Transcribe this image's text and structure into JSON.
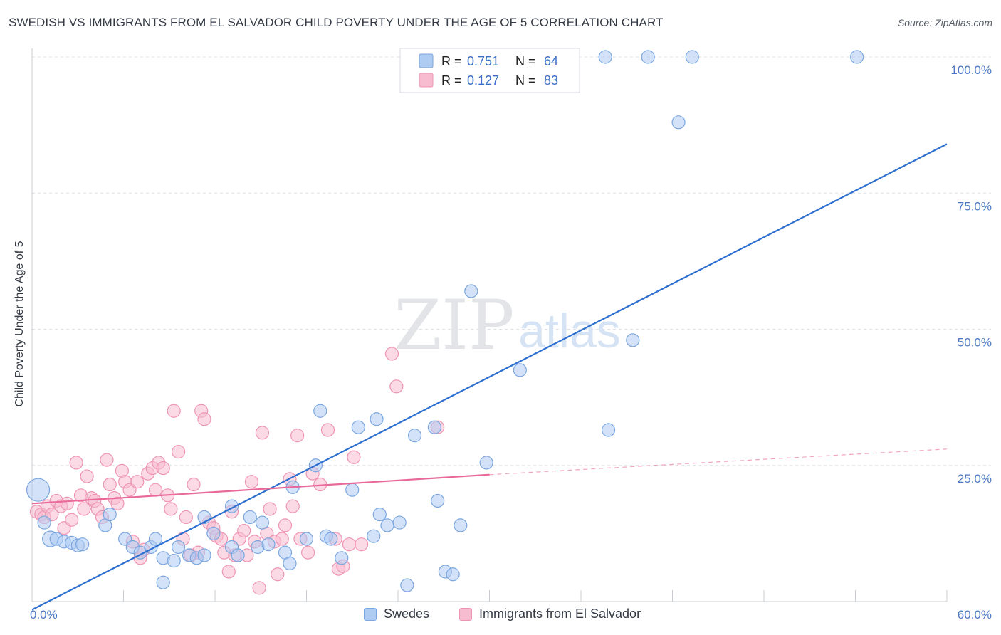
{
  "header": {
    "title": "SWEDISH VS IMMIGRANTS FROM EL SALVADOR CHILD POVERTY UNDER THE AGE OF 5 CORRELATION CHART",
    "source": "Source: ZipAtlas.com"
  },
  "watermark": {
    "zip": "ZIP",
    "atlas": "atlas"
  },
  "legend_box": {
    "rows": [
      {
        "r_label": "R =",
        "r_value": "0.751",
        "n_label": "N =",
        "n_value": "64"
      },
      {
        "r_label": "R =",
        "r_value": "0.127",
        "n_label": "N =",
        "n_value": "83"
      }
    ]
  },
  "bottom_legend": {
    "swedes": "Swedes",
    "salvador": "Immigrants from El Salvador"
  },
  "colors": {
    "blue_fill": "#aecbf2",
    "blue_stroke": "#7aa6df",
    "blue_line": "#2d6fd0",
    "pink_fill": "#f7bcd0",
    "pink_stroke": "#ee94b3",
    "pink_line": "#e8699a",
    "grid": "#dde0e6",
    "tick_text": "#4a78c4"
  },
  "chart_data": {
    "type": "scatter",
    "title": "SWEDISH VS IMMIGRANTS FROM EL SALVADOR CHILD POVERTY UNDER THE AGE OF 5 CORRELATION CHART",
    "xlabel": "",
    "ylabel": "Child Poverty Under the Age of 5",
    "xlim": [
      0,
      60
    ],
    "ylim": [
      0,
      100
    ],
    "x_tick_labels": [
      "0.0%",
      "60.0%"
    ],
    "y_tick_labels": [
      "100.0%",
      "75.0%",
      "50.0%",
      "25.0%"
    ],
    "y_ticks": [
      100,
      75,
      50,
      25
    ],
    "legend_position": "top-center",
    "grid": true,
    "series": [
      {
        "name": "Swedes",
        "r": 0.751,
        "n": 64,
        "trend": {
          "x": [
            0,
            60
          ],
          "y": [
            -1.5,
            84
          ]
        },
        "points": [
          [
            0.4,
            20.5,
            16
          ],
          [
            0.8,
            14.5,
            9
          ],
          [
            1.2,
            11.5,
            11
          ],
          [
            1.6,
            11.5,
            9
          ],
          [
            2.1,
            11.0,
            9
          ],
          [
            2.6,
            10.8,
            9
          ],
          [
            3.0,
            10.3,
            9
          ],
          [
            3.3,
            10.5,
            9
          ],
          [
            4.8,
            14.0,
            9
          ],
          [
            5.1,
            16.0,
            9
          ],
          [
            6.1,
            11.5,
            9
          ],
          [
            6.6,
            10.0,
            9
          ],
          [
            7.1,
            9.0,
            9
          ],
          [
            7.8,
            10.0,
            9
          ],
          [
            8.1,
            11.5,
            9
          ],
          [
            8.6,
            8.0,
            9
          ],
          [
            9.3,
            7.5,
            9
          ],
          [
            9.6,
            10.0,
            9
          ],
          [
            10.3,
            8.5,
            9
          ],
          [
            10.8,
            8.0,
            9
          ],
          [
            11.3,
            8.5,
            9
          ],
          [
            11.3,
            15.5,
            9
          ],
          [
            11.9,
            12.5,
            9
          ],
          [
            13.1,
            10.0,
            9
          ],
          [
            13.1,
            17.5,
            9
          ],
          [
            13.5,
            8.5,
            9
          ],
          [
            14.3,
            15.5,
            9
          ],
          [
            14.8,
            10.0,
            9
          ],
          [
            15.1,
            14.5,
            9
          ],
          [
            15.5,
            10.5,
            9
          ],
          [
            16.6,
            9.0,
            9
          ],
          [
            16.9,
            7.0,
            9
          ],
          [
            17.1,
            21.0,
            9
          ],
          [
            18.0,
            11.5,
            9
          ],
          [
            18.6,
            25.0,
            9
          ],
          [
            18.9,
            35.0,
            9
          ],
          [
            19.3,
            12.0,
            9
          ],
          [
            19.6,
            11.5,
            9
          ],
          [
            20.3,
            8.0,
            9
          ],
          [
            21.0,
            20.5,
            9
          ],
          [
            21.4,
            32.0,
            9
          ],
          [
            22.4,
            12.0,
            9
          ],
          [
            22.6,
            33.5,
            9
          ],
          [
            22.8,
            16.0,
            9
          ],
          [
            23.3,
            14.0,
            9
          ],
          [
            24.1,
            14.5,
            9
          ],
          [
            24.6,
            3.0,
            9
          ],
          [
            25.1,
            30.5,
            9
          ],
          [
            26.4,
            32.0,
            9
          ],
          [
            26.6,
            18.5,
            9
          ],
          [
            27.1,
            5.5,
            9
          ],
          [
            27.6,
            5.0,
            9
          ],
          [
            28.1,
            14.0,
            9
          ],
          [
            28.8,
            57.0,
            9
          ],
          [
            29.8,
            25.5,
            9
          ],
          [
            32.0,
            42.5,
            9
          ],
          [
            37.6,
            100.0,
            9
          ],
          [
            37.8,
            31.5,
            9
          ],
          [
            39.4,
            48.0,
            9
          ],
          [
            40.4,
            100.0,
            9
          ],
          [
            42.4,
            88.0,
            9
          ],
          [
            43.3,
            100.0,
            9
          ],
          [
            54.1,
            100.0,
            9
          ],
          [
            8.6,
            3.5,
            9
          ]
        ]
      },
      {
        "name": "Immigrants from El Salvador",
        "r": 0.127,
        "n": 83,
        "trend": {
          "x": [
            0,
            30,
            60
          ],
          "y": [
            18.0,
            23.3,
            28.0
          ],
          "solid_until": 30
        },
        "points": [
          [
            0.3,
            16.5,
            9
          ],
          [
            0.6,
            16.0,
            9
          ],
          [
            0.8,
            15.5,
            9
          ],
          [
            1.0,
            17.5,
            9
          ],
          [
            1.3,
            16.0,
            9
          ],
          [
            1.6,
            18.5,
            9
          ],
          [
            1.9,
            17.5,
            9
          ],
          [
            2.1,
            13.5,
            9
          ],
          [
            2.3,
            18.0,
            9
          ],
          [
            2.6,
            15.0,
            9
          ],
          [
            2.9,
            25.5,
            9
          ],
          [
            3.2,
            19.5,
            9
          ],
          [
            3.4,
            17.0,
            9
          ],
          [
            3.6,
            23.0,
            9
          ],
          [
            3.9,
            19.0,
            9
          ],
          [
            4.1,
            18.5,
            9
          ],
          [
            4.3,
            17.0,
            9
          ],
          [
            4.6,
            15.5,
            9
          ],
          [
            4.9,
            26.0,
            9
          ],
          [
            5.1,
            21.5,
            9
          ],
          [
            5.4,
            19.0,
            9
          ],
          [
            5.6,
            18.0,
            9
          ],
          [
            5.9,
            24.0,
            9
          ],
          [
            6.1,
            22.0,
            9
          ],
          [
            6.4,
            20.5,
            9
          ],
          [
            6.6,
            11.0,
            9
          ],
          [
            6.9,
            22.0,
            9
          ],
          [
            7.1,
            8.0,
            9
          ],
          [
            7.3,
            9.5,
            9
          ],
          [
            7.6,
            23.5,
            9
          ],
          [
            7.9,
            24.5,
            9
          ],
          [
            8.1,
            20.5,
            9
          ],
          [
            8.3,
            25.5,
            9
          ],
          [
            8.6,
            24.5,
            9
          ],
          [
            8.9,
            19.5,
            9
          ],
          [
            9.1,
            17.0,
            9
          ],
          [
            9.3,
            35.0,
            9
          ],
          [
            9.6,
            27.5,
            9
          ],
          [
            9.9,
            11.5,
            9
          ],
          [
            10.1,
            15.5,
            9
          ],
          [
            10.4,
            8.5,
            9
          ],
          [
            10.6,
            21.5,
            9
          ],
          [
            10.9,
            9.0,
            9
          ],
          [
            11.1,
            35.0,
            9
          ],
          [
            11.3,
            33.5,
            9
          ],
          [
            11.6,
            14.5,
            9
          ],
          [
            11.9,
            13.5,
            9
          ],
          [
            12.1,
            12.0,
            9
          ],
          [
            12.4,
            11.5,
            9
          ],
          [
            12.6,
            9.0,
            9
          ],
          [
            12.9,
            5.5,
            9
          ],
          [
            13.1,
            16.5,
            9
          ],
          [
            13.3,
            8.5,
            9
          ],
          [
            13.6,
            11.5,
            9
          ],
          [
            13.9,
            13.0,
            9
          ],
          [
            14.1,
            8.5,
            9
          ],
          [
            14.4,
            22.0,
            9
          ],
          [
            14.6,
            11.0,
            9
          ],
          [
            14.9,
            2.5,
            9
          ],
          [
            15.1,
            31.0,
            9
          ],
          [
            15.4,
            12.5,
            9
          ],
          [
            15.6,
            17.0,
            9
          ],
          [
            15.9,
            11.0,
            9
          ],
          [
            16.1,
            5.0,
            9
          ],
          [
            16.4,
            11.5,
            9
          ],
          [
            16.6,
            14.0,
            9
          ],
          [
            16.9,
            22.5,
            9
          ],
          [
            17.1,
            17.5,
            9
          ],
          [
            17.4,
            30.5,
            9
          ],
          [
            17.6,
            11.5,
            9
          ],
          [
            18.1,
            9.0,
            9
          ],
          [
            18.4,
            23.5,
            9
          ],
          [
            18.9,
            21.5,
            9
          ],
          [
            19.4,
            31.5,
            9
          ],
          [
            19.9,
            11.5,
            9
          ],
          [
            20.1,
            6.0,
            9
          ],
          [
            20.4,
            6.5,
            9
          ],
          [
            20.8,
            10.5,
            9
          ],
          [
            21.1,
            26.5,
            9
          ],
          [
            21.6,
            10.5,
            9
          ],
          [
            23.6,
            45.5,
            9
          ],
          [
            23.9,
            39.5,
            9
          ],
          [
            26.6,
            32.0,
            9
          ]
        ]
      }
    ]
  }
}
